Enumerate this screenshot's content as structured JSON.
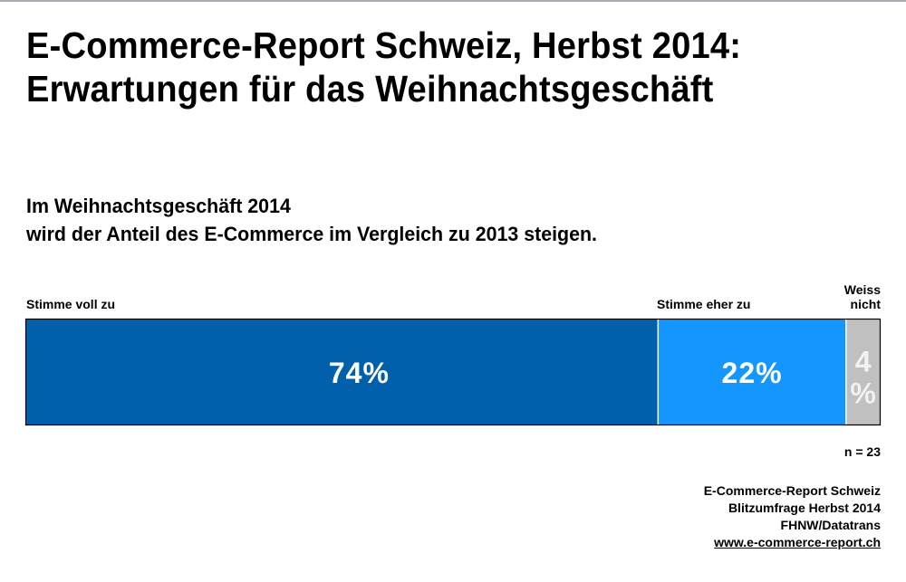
{
  "title_lines": [
    "E-Commerce-Report Schweiz, Herbst 2014:",
    "Erwartungen für das Weihnachtsgeschäft"
  ],
  "subtitle_lines": [
    "Im Weihnachtsgeschäft 2014",
    "wird der Anteil des E-Commerce im Vergleich zu 2013 steigen."
  ],
  "chart_data": {
    "type": "bar",
    "orientation": "horizontal-stacked-100",
    "title": "Im Weihnachtsgeschäft 2014 wird der Anteil des E-Commerce im Vergleich zu 2013 steigen.",
    "xlabel": "",
    "ylabel": "",
    "xlim": [
      0,
      100
    ],
    "grid": false,
    "legend": "labels above segments",
    "categories": [
      "Stimme voll zu",
      "Stimme eher zu",
      "Weiss nicht"
    ],
    "category_label_lines": [
      [
        "Stimme voll zu"
      ],
      [
        "Stimme eher zu"
      ],
      [
        "Weiss",
        "nicht"
      ]
    ],
    "values": [
      74,
      22,
      4
    ],
    "data_labels": [
      "74%",
      "22%",
      "4 %"
    ],
    "colors": [
      "#0060AC",
      "#1496FF",
      "#C0C0C0"
    ],
    "unit": "%"
  },
  "sample_note": "n = 23",
  "source_lines": [
    "E-Commerce-Report Schweiz",
    "Blitzumfrage Herbst 2014",
    "FHNW/Datatrans"
  ],
  "source_link": "www.e-commerce-report.ch"
}
